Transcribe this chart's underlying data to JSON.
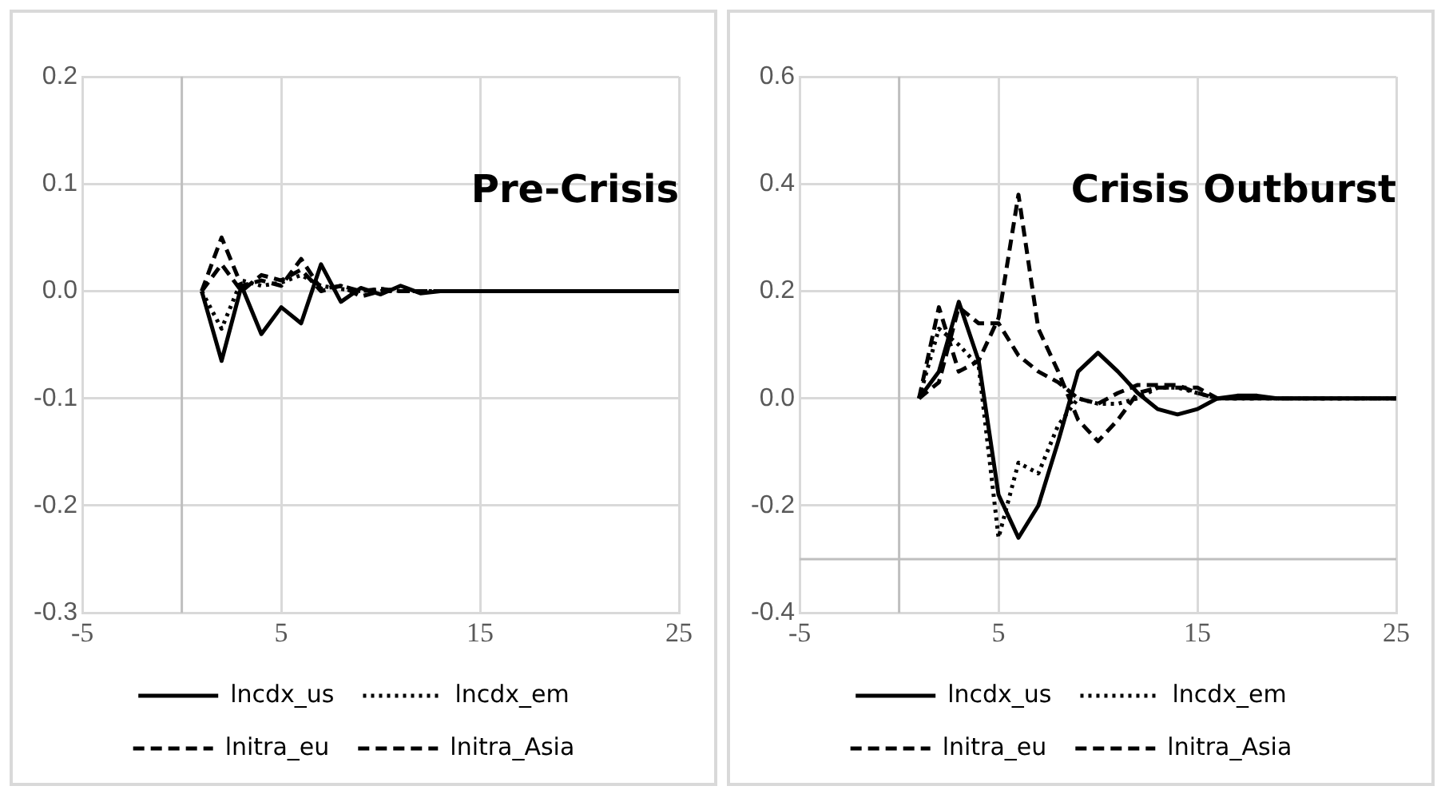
{
  "chart_data": [
    {
      "type": "line",
      "annotations": [
        "Pre-Crisis"
      ],
      "x": [
        1,
        2,
        3,
        4,
        5,
        6,
        7,
        8,
        9,
        10,
        11,
        12,
        13,
        14,
        15,
        16,
        17,
        18,
        19,
        20,
        21,
        22,
        23,
        24,
        25
      ],
      "series": [
        {
          "name": "lncdx_us",
          "color": "#000000",
          "line_style": "solid",
          "values": [
            0,
            -0.065,
            0.005,
            -0.04,
            -0.015,
            -0.03,
            0.025,
            -0.01,
            0.003,
            -0.003,
            0.005,
            -0.002,
            0,
            0,
            0,
            0,
            0,
            0,
            0,
            0,
            0,
            0,
            0,
            0,
            0
          ]
        },
        {
          "name": "lncdx_em",
          "color": "#000000",
          "line_style": "dotted",
          "values": [
            0,
            -0.035,
            0.01,
            0.005,
            0.008,
            0.015,
            0.005,
            0.002,
            0,
            0.002,
            0,
            0,
            0,
            0,
            0,
            0,
            0,
            0,
            0,
            0,
            0,
            0,
            0,
            0,
            0
          ]
        },
        {
          "name": "lnitra_eu",
          "color": "#000000",
          "line_style": "dashed",
          "values": [
            0,
            0.05,
            0.005,
            0.01,
            0.005,
            0.03,
            0.002,
            0.005,
            0,
            0.002,
            0,
            0,
            0,
            0,
            0,
            0,
            0,
            0,
            0,
            0,
            0,
            0,
            0,
            0,
            0
          ]
        },
        {
          "name": "lnitra_Asia",
          "color": "#000000",
          "line_style": "dashed",
          "values": [
            0,
            0.025,
            0,
            0.015,
            0.01,
            0.02,
            0,
            0.005,
            -0.005,
            0,
            0,
            0,
            0,
            0,
            0,
            0,
            0,
            0,
            0,
            0,
            0,
            0,
            0,
            0,
            0
          ]
        }
      ],
      "xlim": [
        -5,
        25
      ],
      "xticks": [
        -5,
        5,
        15,
        25
      ],
      "ylim": [
        -0.3,
        0.2
      ],
      "yticks": [
        {
          "value": -0.3,
          "label": "-0.3"
        },
        {
          "value": -0.2,
          "label": "-0.2"
        },
        {
          "value": -0.1,
          "label": "-0.1"
        },
        {
          "value": 0,
          "label": "0.0"
        },
        {
          "value": 0.1,
          "label": "0.1"
        },
        {
          "value": 0.2,
          "label": "0.2"
        }
      ],
      "ref_lines": [
        {
          "axis": "x",
          "value": 0,
          "color": "#bfbfbf"
        }
      ],
      "grid": true,
      "legend": "bottom",
      "marker": "none"
    },
    {
      "type": "line",
      "annotations": [
        "Crisis Outburst"
      ],
      "x": [
        1,
        2,
        3,
        4,
        5,
        6,
        7,
        8,
        9,
        10,
        11,
        12,
        13,
        14,
        15,
        16,
        17,
        18,
        19,
        20,
        21,
        22,
        23,
        24,
        25
      ],
      "series": [
        {
          "name": "lncdx_us",
          "color": "#000000",
          "line_style": "solid",
          "values": [
            0,
            0.05,
            0.18,
            0.07,
            -0.18,
            -0.26,
            -0.2,
            -0.08,
            0.05,
            0.085,
            0.05,
            0.01,
            -0.02,
            -0.03,
            -0.02,
            0,
            0.005,
            0.005,
            0,
            0,
            0,
            0,
            0,
            0,
            0
          ]
        },
        {
          "name": "lncdx_em",
          "color": "#000000",
          "line_style": "dotted",
          "values": [
            0,
            0.13,
            0.1,
            0.06,
            -0.26,
            -0.12,
            -0.14,
            -0.05,
            0,
            -0.01,
            -0.01,
            0,
            0.02,
            0.02,
            0.01,
            0,
            0,
            0,
            0,
            0,
            0,
            0,
            0,
            0,
            0
          ]
        },
        {
          "name": "lnitra_eu",
          "color": "#000000",
          "line_style": "dashed",
          "values": [
            0,
            0.17,
            0.05,
            0.07,
            0.15,
            0.38,
            0.13,
            0.05,
            -0.04,
            -0.08,
            -0.04,
            0.01,
            0.02,
            0.02,
            0.02,
            0,
            0,
            0,
            0,
            0,
            0,
            0,
            0,
            0,
            0
          ]
        },
        {
          "name": "lnitra_Asia",
          "color": "#000000",
          "line_style": "dashed",
          "values": [
            0,
            0.03,
            0.17,
            0.14,
            0.14,
            0.08,
            0.05,
            0.03,
            0,
            -0.01,
            0.01,
            0.025,
            0.025,
            0.025,
            0.01,
            0,
            0,
            0,
            0,
            0,
            0,
            0,
            0,
            0,
            0
          ]
        }
      ],
      "xlim": [
        -5,
        25
      ],
      "xticks": [
        -5,
        5,
        15,
        25
      ],
      "ylim": [
        -0.4,
        0.6
      ],
      "yticks": [
        {
          "value": -0.4,
          "label": "-0.4"
        },
        {
          "value": -0.2,
          "label": "-0.2"
        },
        {
          "value": 0,
          "label": "0.0"
        },
        {
          "value": 0.2,
          "label": "0.2"
        },
        {
          "value": 0.4,
          "label": "0.4"
        },
        {
          "value": 0.6,
          "label": "0.6"
        }
      ],
      "ref_lines": [
        {
          "axis": "x",
          "value": 0,
          "color": "#bfbfbf"
        },
        {
          "axis": "y",
          "value": -0.3,
          "color": "#bfbfbf"
        }
      ],
      "grid": true,
      "legend": "bottom",
      "marker": "none"
    }
  ]
}
